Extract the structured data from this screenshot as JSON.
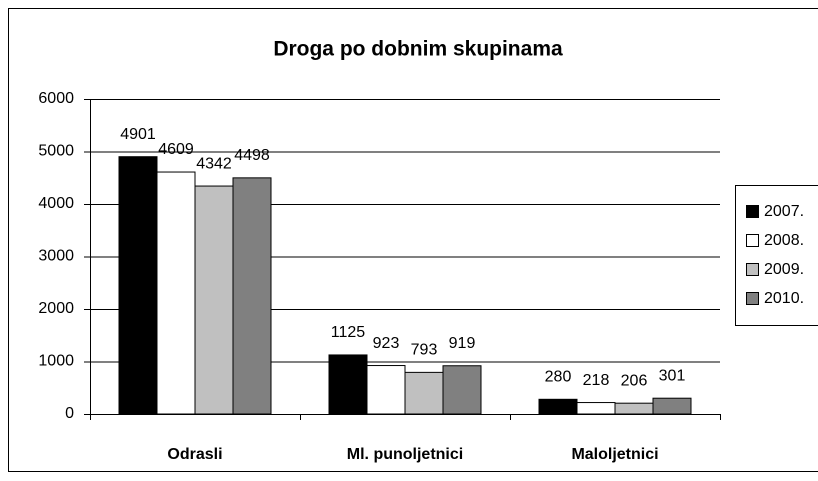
{
  "chart_data": {
    "type": "bar",
    "title": "Droga po dobnim skupinama",
    "categories": [
      "Odrasli",
      "Ml. punoljetnici",
      "Maloljetnici"
    ],
    "series": [
      {
        "name": "2007.",
        "color": "#000000",
        "values": [
          4901,
          1125,
          280
        ]
      },
      {
        "name": "2008.",
        "color": "#ffffff",
        "values": [
          4609,
          923,
          218
        ]
      },
      {
        "name": "2009.",
        "color": "#c0c0c0",
        "values": [
          4342,
          793,
          206
        ]
      },
      {
        "name": "2010.",
        "color": "#808080",
        "values": [
          4498,
          919,
          301
        ]
      }
    ],
    "ylim": [
      0,
      6000
    ],
    "yticks": [
      0,
      1000,
      2000,
      3000,
      4000,
      5000,
      6000
    ],
    "grid": true,
    "legend": "right"
  }
}
